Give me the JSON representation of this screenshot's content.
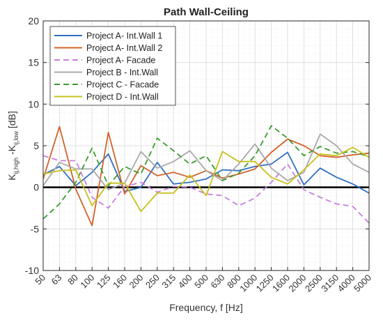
{
  "chart_data": {
    "type": "line",
    "title": "Path Wall-Ceiling",
    "xlabel": "Frequency, f [Hz]",
    "ylabel": {
      "part1": "K",
      "sub1": "ij,high",
      "part2": " -K",
      "sub2": "ij,low",
      "part3": " [dB]"
    },
    "ylim": [
      -10,
      20
    ],
    "y_ticks": [
      -10,
      -5,
      0,
      5,
      10,
      15,
      20
    ],
    "categories": [
      "50",
      "63",
      "80",
      "100",
      "125",
      "160",
      "200",
      "250",
      "315",
      "400",
      "500",
      "630",
      "800",
      "1000",
      "1250",
      "1600",
      "2000",
      "2500",
      "3150",
      "4000",
      "5000"
    ],
    "grid": true,
    "minor_grid": true,
    "zero_line": true,
    "legend_position": "top-left",
    "series": [
      {
        "name": "Project A- Int.Wall 1",
        "color": "#2f6fc1",
        "dash": "solid",
        "values": [
          1.5,
          2.5,
          0.2,
          1.8,
          4.0,
          -0.5,
          0.0,
          3.0,
          0.4,
          0.6,
          1.0,
          2.1,
          2.0,
          2.5,
          2.8,
          4.2,
          0.3,
          2.3,
          1.2,
          0.4,
          -0.7
        ]
      },
      {
        "name": "Project A- Int.Wall 2",
        "color": "#d0632a",
        "dash": "solid",
        "values": [
          1.0,
          7.3,
          -0.2,
          -4.6,
          6.6,
          -0.8,
          2.6,
          1.4,
          1.8,
          1.2,
          2.0,
          1.1,
          1.6,
          2.2,
          4.2,
          5.8,
          5.0,
          3.8,
          3.6,
          3.9,
          4.1
        ]
      },
      {
        "name": "Project A- Facade",
        "color": "#c77fe0",
        "dash": "dashed",
        "values": [
          3.8,
          3.2,
          3.2,
          -1.2,
          -2.5,
          0.1,
          0.6,
          -0.6,
          0.1,
          0.0,
          -0.8,
          -1.0,
          -2.2,
          -1.3,
          0.6,
          2.8,
          -0.3,
          -1.2,
          -2.0,
          -2.3,
          -4.3
        ]
      },
      {
        "name": "Project B - Int.Wall",
        "color": "#a9a9a9",
        "dash": "solid",
        "values": [
          0.2,
          3.0,
          2.2,
          2.2,
          -0.3,
          0.5,
          4.3,
          2.3,
          3.1,
          4.4,
          2.0,
          0.8,
          2.8,
          5.2,
          2.3,
          0.8,
          1.8,
          6.4,
          5.0,
          2.8,
          1.8
        ]
      },
      {
        "name": "Project C - Facade",
        "color": "#3a9c2d",
        "dash": "dashed",
        "values": [
          -3.8,
          -2.0,
          0.6,
          4.7,
          0.2,
          2.5,
          1.6,
          5.9,
          4.4,
          2.8,
          3.8,
          0.8,
          1.7,
          3.8,
          7.4,
          5.9,
          3.8,
          4.9,
          4.1,
          4.3,
          3.7
        ]
      },
      {
        "name": "Project D - Int.Wall",
        "color": "#c8c01c",
        "dash": "solid",
        "values": [
          1.6,
          2.0,
          2.1,
          -2.2,
          0.5,
          0.5,
          -2.9,
          -0.7,
          -0.7,
          1.5,
          -1.0,
          4.3,
          3.1,
          3.1,
          1.2,
          0.4,
          2.1,
          4.0,
          3.8,
          4.8,
          3.6
        ]
      }
    ]
  }
}
